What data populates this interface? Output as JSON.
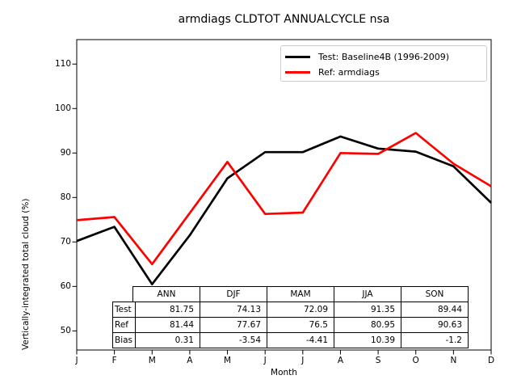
{
  "chart_data": {
    "type": "line",
    "title": "armdiags CLDTOT ANNUALCYCLE nsa",
    "xlabel": "Month",
    "ylabel": "Vertically-integrated total cloud (%)",
    "x_categories": [
      "J",
      "F",
      "M",
      "A",
      "M",
      "J",
      "J",
      "A",
      "S",
      "O",
      "N",
      "D"
    ],
    "yticks": [
      50,
      60,
      70,
      80,
      90,
      100,
      110
    ],
    "ylim": [
      45.7,
      115.5
    ],
    "grid": false,
    "legend_position": "upper right",
    "series": [
      {
        "name": "Test: Baseline4B (1996-2009)",
        "color": "#000000",
        "values": [
          70.2,
          73.4,
          60.5,
          71.5,
          84.3,
          90.2,
          90.2,
          93.7,
          91.0,
          90.3,
          87.0,
          78.8
        ]
      },
      {
        "name": "Ref: armdiags",
        "color": "#ff0000",
        "values": [
          74.9,
          75.6,
          65.0,
          76.5,
          88.0,
          76.3,
          76.6,
          90.0,
          89.8,
          94.5,
          87.6,
          82.5
        ]
      }
    ],
    "table": {
      "columns": [
        "ANN",
        "DJF",
        "MAM",
        "JJA",
        "SON"
      ],
      "rows": [
        {
          "label": "Test",
          "values": [
            "81.75",
            "74.13",
            "72.09",
            "91.35",
            "89.44"
          ]
        },
        {
          "label": "Ref",
          "values": [
            "81.44",
            "77.67",
            "76.5",
            "80.95",
            "90.63"
          ]
        },
        {
          "label": "Bias",
          "values": [
            "0.31",
            "-3.54",
            "-4.41",
            "10.39",
            "-1.2"
          ]
        }
      ]
    }
  }
}
